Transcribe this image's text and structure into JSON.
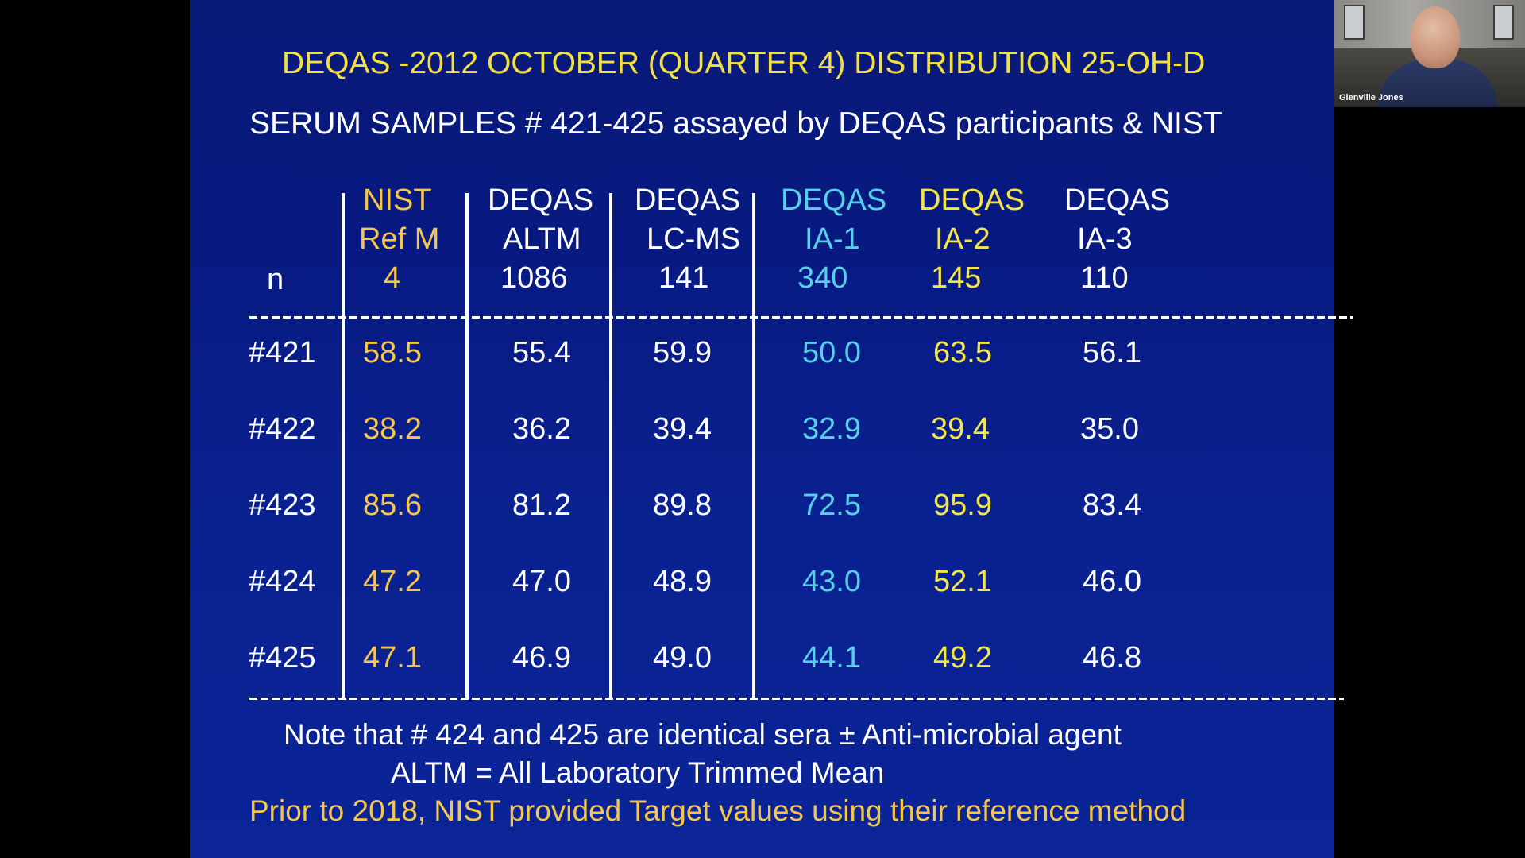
{
  "slide": {
    "title": "DEQAS -2012 OCTOBER (QUARTER 4) DISTRIBUTION   25-OH-D",
    "subtitle": "SERUM SAMPLES # 421-425 assayed by DEQAS participants & NIST"
  },
  "table": {
    "row_label_n": "n",
    "columns": [
      {
        "line1": "NIST",
        "line2": "Ref M",
        "n": "4",
        "color": "#f5c64b"
      },
      {
        "line1": "DEQAS",
        "line2": "ALTM",
        "n": "1086",
        "color": "#ffffff"
      },
      {
        "line1": "DEQAS",
        "line2": "LC-MS",
        "n": "141",
        "color": "#ffffff"
      },
      {
        "line1": "DEQAS",
        "line2": "IA-1",
        "n": "340",
        "color": "#56d0e8"
      },
      {
        "line1": "DEQAS",
        "line2": "IA-2",
        "n": "145",
        "color": "#f4e64a"
      },
      {
        "line1": "DEQAS",
        "line2": "IA-3",
        "n": "110",
        "color": "#ffffff"
      }
    ],
    "rows": [
      {
        "id": "#421",
        "values": [
          "58.5",
          "55.4",
          "59.9",
          "50.0",
          "63.5",
          "56.1"
        ]
      },
      {
        "id": "#422",
        "values": [
          "38.2",
          "36.2",
          "39.4",
          "32.9",
          "39.4",
          "35.0"
        ]
      },
      {
        "id": "#423",
        "values": [
          "85.6",
          "81.2",
          "89.8",
          "72.5",
          "95.9",
          "83.4"
        ]
      },
      {
        "id": "#424",
        "values": [
          "47.2",
          "47.0",
          "48.9",
          "43.0",
          "52.1",
          "46.0"
        ]
      },
      {
        "id": "#425",
        "values": [
          "47.1",
          "46.9",
          "49.0",
          "44.1",
          "49.2",
          "46.8"
        ]
      }
    ]
  },
  "notes": {
    "line1": "Note that # 424 and 425 are identical sera ± Anti-microbial agent",
    "line2": "ALTM = All Laboratory Trimmed Mean",
    "line3": "Prior to 2018, NIST provided Target values using their reference method"
  },
  "video": {
    "participant_name": "Glenville Jones"
  }
}
